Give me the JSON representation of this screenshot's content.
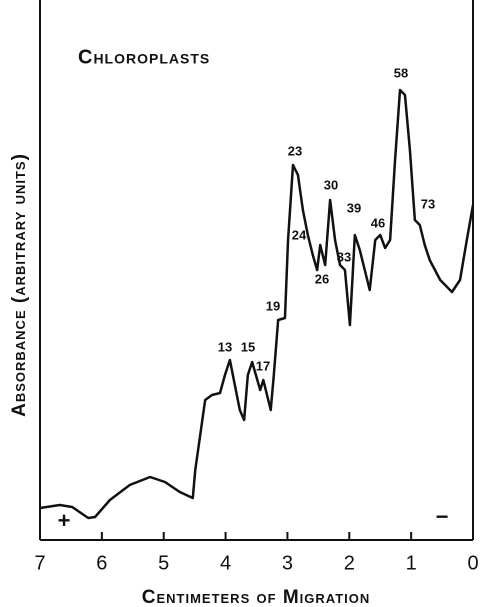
{
  "chart_data": {
    "type": "line",
    "title": "Chloroplasts",
    "xlabel": "Centimeters of Migration",
    "ylabel": "Absorbance (arbitrary units)",
    "xlim": [
      7,
      0
    ],
    "xticks": [
      7,
      6,
      5,
      4,
      3,
      2,
      1,
      0
    ],
    "ylim": [
      0,
      100
    ],
    "color": "#111111",
    "annotations": [
      "23",
      "30",
      "58",
      "39",
      "46",
      "73",
      "24",
      "26",
      "33",
      "19",
      "13",
      "15",
      "17",
      "+",
      "−"
    ],
    "series": [
      {
        "name": "Chloroplasts",
        "color": "#111111",
        "x": [
          7.0,
          6.68,
          6.48,
          6.22,
          6.11,
          5.87,
          5.55,
          5.22,
          4.98,
          4.74,
          4.53,
          4.49,
          4.33,
          4.22,
          4.09,
          4.01,
          3.93,
          3.85,
          3.77,
          3.7,
          3.64,
          3.57,
          3.51,
          3.44,
          3.39,
          3.33,
          3.27,
          3.22,
          3.15,
          3.04,
          2.99,
          2.91,
          2.83,
          2.75,
          2.67,
          2.59,
          2.52,
          2.47,
          2.39,
          2.31,
          2.23,
          2.15,
          2.07,
          1.99,
          1.91,
          1.83,
          1.75,
          1.67,
          1.58,
          1.5,
          1.42,
          1.34,
          1.26,
          1.18,
          1.1,
          1.02,
          0.94,
          0.86,
          0.78,
          0.7,
          0.53,
          0.34,
          0.21,
          0.1,
          0.0
        ],
        "values": [
          6.4,
          7.0,
          6.6,
          4.4,
          4.6,
          8.0,
          11.0,
          12.6,
          11.6,
          9.6,
          8.4,
          14.0,
          28.0,
          29.0,
          29.4,
          33.0,
          36.0,
          31.0,
          26.0,
          24.0,
          33.0,
          35.6,
          33.0,
          30.0,
          32.0,
          29.0,
          26.0,
          33.0,
          44.0,
          44.4,
          60.0,
          75.0,
          73.0,
          66.0,
          61.0,
          57.0,
          54.0,
          59.0,
          55.0,
          68.0,
          60.0,
          55.0,
          54.0,
          43.0,
          61.0,
          58.0,
          54.0,
          50.0,
          60.0,
          61.0,
          58.4,
          60.0,
          76.0,
          90.0,
          89.0,
          78.0,
          64.0,
          63.0,
          59.0,
          56.0,
          52.0,
          49.6,
          52.0,
          60.0,
          67.0
        ]
      }
    ]
  }
}
